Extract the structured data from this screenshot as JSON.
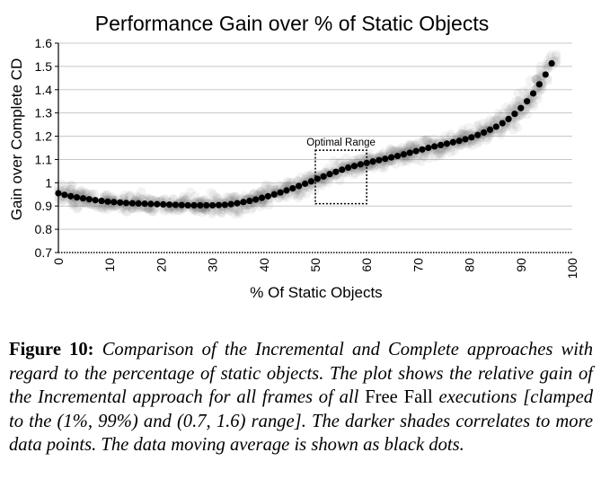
{
  "chart_data": {
    "type": "scatter",
    "title": "Performance Gain over % of Static Objects",
    "xlabel": "% Of Static Objects",
    "ylabel": "Gain over Complete CD",
    "xlim": [
      0,
      100
    ],
    "ylim": [
      0.7,
      1.6
    ],
    "xticks": [
      "0",
      "10",
      "20",
      "30",
      "40",
      "50",
      "60",
      "70",
      "80",
      "90",
      "100"
    ],
    "yticks": [
      "0.7",
      "0.8",
      "0.9",
      "1",
      "1.1",
      "1.2",
      "1.3",
      "1.4",
      "1.5",
      "1.6"
    ],
    "grid": "horizontal",
    "annotation": {
      "label": "Optimal Range",
      "x_range": [
        50,
        60
      ],
      "y_range": [
        0.91,
        1.14
      ]
    },
    "series": [
      {
        "type": "scatter-moving-average",
        "x": [
          0,
          1.2,
          2.4,
          3.6,
          4.8,
          6,
          7.2,
          8.4,
          9.6,
          10.8,
          12,
          13.2,
          14.4,
          15.6,
          16.8,
          18,
          19.2,
          20.4,
          21.6,
          22.8,
          24,
          25.2,
          26.4,
          27.6,
          28.8,
          30,
          31.2,
          32.4,
          33.6,
          34.8,
          36,
          37.2,
          38.4,
          39.6,
          40.8,
          42,
          43.2,
          44.4,
          45.6,
          46.8,
          48,
          49.2,
          50.4,
          51.6,
          52.8,
          54,
          55.2,
          56.4,
          57.6,
          58.8,
          60,
          61.2,
          62.4,
          63.6,
          64.8,
          66,
          67.2,
          68.4,
          69.6,
          70.8,
          72,
          73.2,
          74.4,
          75.6,
          76.8,
          78,
          79.2,
          80.4,
          81.6,
          82.8,
          84,
          85.2,
          86.4,
          87.6,
          88.8,
          90,
          91.2,
          92.4,
          93.6,
          94.8,
          96
        ],
        "values": [
          0.955,
          0.948,
          0.942,
          0.937,
          0.933,
          0.929,
          0.925,
          0.922,
          0.919,
          0.917,
          0.915,
          0.913,
          0.912,
          0.911,
          0.91,
          0.909,
          0.908,
          0.907,
          0.906,
          0.905,
          0.904,
          0.903,
          0.903,
          0.903,
          0.903,
          0.903,
          0.904,
          0.905,
          0.908,
          0.912,
          0.917,
          0.922,
          0.928,
          0.935,
          0.942,
          0.95,
          0.958,
          0.967,
          0.976,
          0.986,
          0.996,
          1.006,
          1.017,
          1.027,
          1.037,
          1.047,
          1.056,
          1.065,
          1.072,
          1.079,
          1.085,
          1.091,
          1.097,
          1.103,
          1.109,
          1.115,
          1.122,
          1.129,
          1.136,
          1.143,
          1.15,
          1.156,
          1.162,
          1.168,
          1.174,
          1.18,
          1.187,
          1.195,
          1.205,
          1.216,
          1.228,
          1.241,
          1.256,
          1.274,
          1.296,
          1.321,
          1.35,
          1.384,
          1.423,
          1.465,
          1.513
        ]
      }
    ]
  },
  "caption": {
    "label": "Figure 10:",
    "text1": "Comparison of the Incremental and Complete approaches with regard to the percentage of static objects. The plot shows the relative gain of the Incremental approach for all frames of all",
    "upright": "Free Fall",
    "text2": "executions [clamped to the (1%, 99%) and (0.7, 1.6) range]. The darker shades correlates to more data points. The data moving average is shown as black dots."
  }
}
